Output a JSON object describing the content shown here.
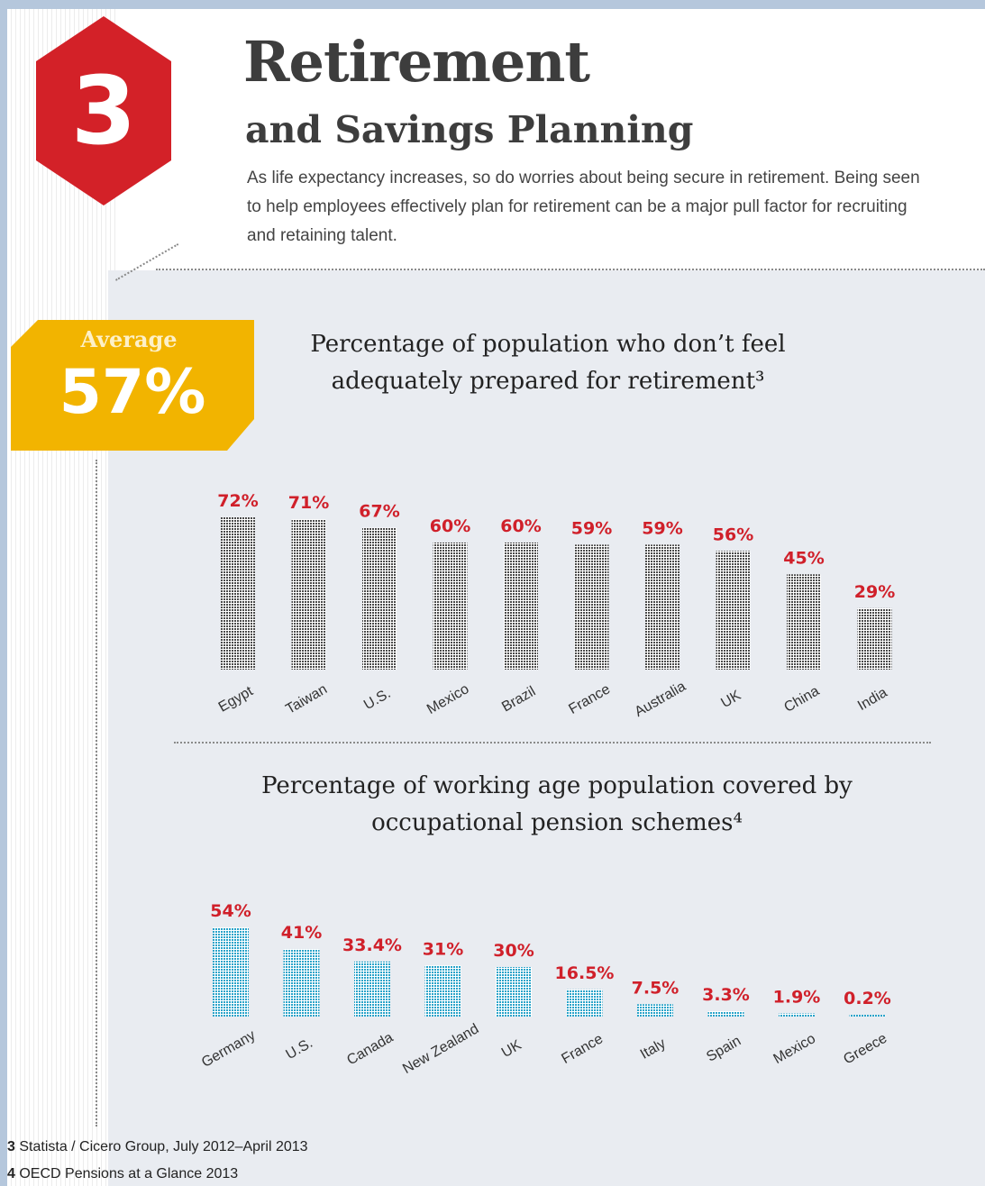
{
  "header": {
    "number": "3",
    "title": "Retirement",
    "subtitle": "and Savings Planning",
    "intro": "As life expectancy increases, so do worries about being secure in retirement. Being seen  to help employees effectively plan for retirement can be a major pull factor for recruiting and retaining talent."
  },
  "average": {
    "label": "Average",
    "value": "57%"
  },
  "colors": {
    "hexagon": "#d32128",
    "average_box": "#f2b400",
    "value_label": "#d0202a",
    "chart1_bar": "#4a4a4a",
    "chart2_bar": "#29a3c9"
  },
  "chart_data": [
    {
      "type": "bar",
      "title": "Percentage of population who don’t feel adequately prepared for retirement³",
      "categories": [
        "Egypt",
        "Taiwan",
        "U.S.",
        "Mexico",
        "Brazil",
        "France",
        "Australia",
        "UK",
        "China",
        "India"
      ],
      "values": [
        72,
        71,
        67,
        60,
        60,
        59,
        59,
        56,
        45,
        29
      ],
      "value_labels": [
        "72%",
        "71%",
        "67%",
        "60%",
        "60%",
        "59%",
        "59%",
        "56%",
        "45%",
        "29%"
      ],
      "ylim": [
        0,
        100
      ],
      "grid": false
    },
    {
      "type": "bar",
      "title": "Percentage of working age population covered by occupational pension schemes⁴",
      "categories": [
        "Germany",
        "U.S.",
        "Canada",
        "New Zealand",
        "UK",
        "France",
        "Italy",
        "Spain",
        "Mexico",
        "Greece"
      ],
      "values": [
        54,
        41,
        33.4,
        31,
        30,
        16.5,
        7.5,
        3.3,
        1.9,
        0.2
      ],
      "value_labels": [
        "54%",
        "41%",
        "33.4%",
        "31%",
        "30%",
        "16.5%",
        "7.5%",
        "3.3%",
        "1.9%",
        "0.2%"
      ],
      "ylim": [
        0,
        100
      ],
      "grid": false
    }
  ],
  "footnotes": [
    {
      "num": "3",
      "text": "Statista / Cicero Group, July 2012–April 2013"
    },
    {
      "num": "4",
      "text": "OECD Pensions at a Glance 2013"
    }
  ]
}
